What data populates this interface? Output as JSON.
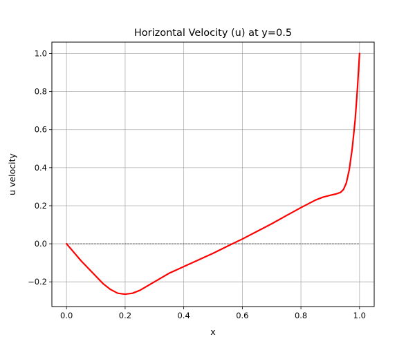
{
  "chart_data": {
    "type": "line",
    "title": "Horizontal Velocity (u) at y=0.5",
    "xlabel": "x",
    "ylabel": "u velocity",
    "xlim": [
      -0.05,
      1.05
    ],
    "ylim": [
      -0.33,
      1.06
    ],
    "x_ticks": [
      0.0,
      0.2,
      0.4,
      0.6,
      0.8,
      1.0
    ],
    "x_tick_labels": [
      "0.0",
      "0.2",
      "0.4",
      "0.6",
      "0.8",
      "1.0"
    ],
    "y_ticks": [
      -0.2,
      0.0,
      0.2,
      0.4,
      0.6,
      0.8,
      1.0
    ],
    "y_tick_labels": [
      "−0.2",
      "0.0",
      "0.2",
      "0.4",
      "0.6",
      "0.8",
      "1.0"
    ],
    "grid": true,
    "reference_line": {
      "y": 0.0,
      "style": "dashed",
      "color": "#000000"
    },
    "series": [
      {
        "color": "#ff0000",
        "x": [
          0.0,
          0.025,
          0.05,
          0.075,
          0.1,
          0.125,
          0.15,
          0.175,
          0.2,
          0.225,
          0.25,
          0.3,
          0.35,
          0.4,
          0.45,
          0.5,
          0.55,
          0.6,
          0.65,
          0.7,
          0.75,
          0.8,
          0.825,
          0.85,
          0.875,
          0.9,
          0.92,
          0.935,
          0.945,
          0.955,
          0.965,
          0.975,
          0.985,
          0.993,
          1.0
        ],
        "y": [
          0.0,
          -0.045,
          -0.09,
          -0.13,
          -0.17,
          -0.21,
          -0.24,
          -0.26,
          -0.265,
          -0.26,
          -0.245,
          -0.2,
          -0.155,
          -0.12,
          -0.085,
          -0.05,
          -0.012,
          0.025,
          0.065,
          0.105,
          0.148,
          0.19,
          0.21,
          0.23,
          0.245,
          0.255,
          0.262,
          0.27,
          0.285,
          0.32,
          0.39,
          0.5,
          0.65,
          0.82,
          1.0
        ]
      }
    ]
  }
}
